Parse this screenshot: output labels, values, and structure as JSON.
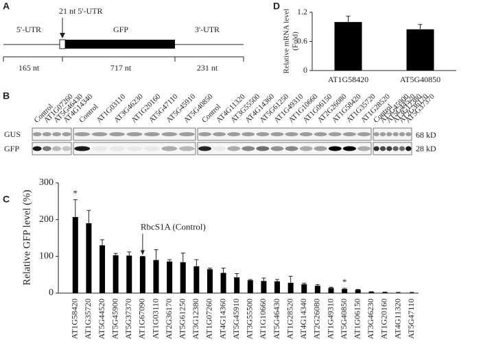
{
  "schematic": {
    "panel": "A",
    "utr5": "5'-UTR",
    "short_utr": "21 nt 5'-UTR",
    "gfp": "GFP",
    "utr3": "3'-UTR",
    "lengths": [
      "165 nt",
      "717 nt",
      "231 nt"
    ]
  },
  "blot": {
    "panel": "B",
    "groups": [
      [
        "Control",
        "AT1G07260",
        "AT5G46430",
        "AT4G14340"
      ],
      [
        "Control",
        "AT1G03110",
        "AT3G46230",
        "AT1G20160",
        "AT5G47110",
        "AT5G45910",
        "AT5G40850"
      ],
      [
        "Control",
        "AT4G11320",
        "AT3G55500",
        "AT4G14360",
        "AT5G61250",
        "AT1G49310",
        "AT1G10660",
        "AT1G06150",
        "AT2G26080",
        "AT1G58420",
        "AT1G35720",
        "AT1G28520"
      ],
      [
        "Control",
        "AT5G45900",
        "AT5G44520",
        "AT3G12380",
        "AT2G36170",
        "AT5G37370"
      ]
    ],
    "rows": [
      "GUS",
      "GFP"
    ],
    "sizes": [
      "68 kD",
      "28 kD"
    ]
  },
  "chart_data": [
    {
      "type": "bar",
      "panel": "C",
      "ylabel": "Relative GFP level (%)",
      "categories": [
        "AT1G58420",
        "AT1G35720",
        "AT5G44520",
        "AT5G45900",
        "AT5G37370",
        "AT1G67090",
        "AT1G03110",
        "AT2G36170",
        "AT5G61250",
        "AT3G12380",
        "AT1G07260",
        "AT4G14360",
        "AT5G45910",
        "AT3G55500",
        "AT1G10660",
        "AT5G46430",
        "AT1G28520",
        "AT4G14340",
        "AT2G26080",
        "AT1G49310",
        "AT5G40850",
        "AT1G06150",
        "AT3G46230",
        "AT1G20160",
        "AT4G11320",
        "AT5G47110"
      ],
      "values": [
        207,
        190,
        130,
        103,
        102,
        100,
        90,
        86,
        84,
        73,
        65,
        55,
        43,
        35,
        33,
        32,
        28,
        24,
        20,
        14,
        11,
        9,
        3,
        2,
        1,
        1
      ],
      "errors": [
        47,
        35,
        15,
        5,
        10,
        0,
        28,
        5,
        25,
        18,
        3,
        13,
        10,
        2,
        8,
        5,
        18,
        3,
        3,
        2,
        2,
        1,
        1,
        1,
        1,
        1
      ],
      "color": "#000000",
      "ylim": [
        0,
        300
      ],
      "yticks": [
        0,
        100,
        200,
        300
      ],
      "annotations": [
        {
          "text": "*",
          "category": "AT1G58420"
        },
        {
          "text": "RbcS1A (Control)",
          "category": "AT1G67090",
          "arrow": true
        },
        {
          "text": "*",
          "category": "AT5G40850"
        }
      ]
    },
    {
      "type": "bar",
      "panel": "D",
      "ylabel": [
        "Relative mRNA level",
        "(Fold)"
      ],
      "categories": [
        "AT1G58420",
        "AT5G40850"
      ],
      "values": [
        1.0,
        0.85
      ],
      "errors": [
        0.12,
        0.1
      ],
      "color": "#000000",
      "ylim": [
        0,
        1.2
      ],
      "yticks": [
        0,
        0.6,
        1.2
      ]
    }
  ]
}
